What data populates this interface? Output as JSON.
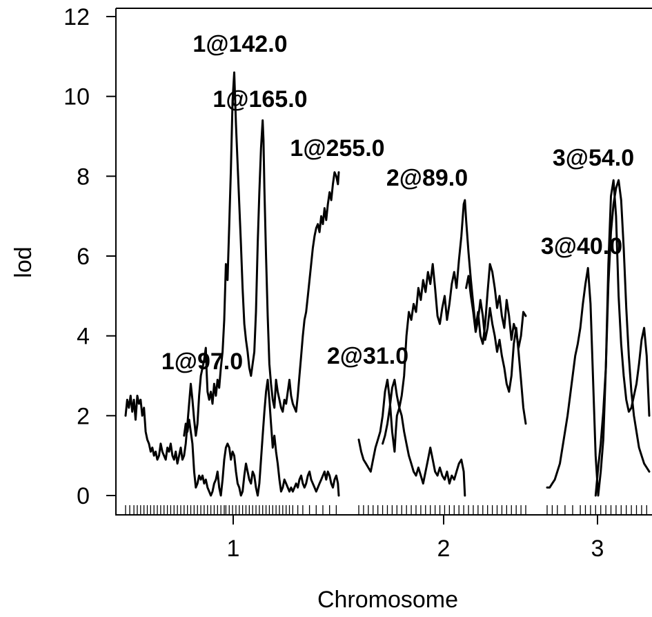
{
  "chart_data": {
    "type": "line",
    "xlabel": "Chromosome",
    "ylabel": "lod",
    "ylim": [
      0,
      12
    ],
    "y_ticks": [
      0,
      2,
      4,
      6,
      8,
      10,
      12
    ],
    "x_ticks": [
      {
        "label": "1",
        "chromosome": 1
      },
      {
        "label": "2",
        "chromosome": 2
      },
      {
        "label": "3",
        "chromosome": 3
      }
    ],
    "chromosomes": [
      {
        "name": "1",
        "start_cM": 0,
        "end_cM": 255
      },
      {
        "name": "2",
        "start_cM": 0,
        "end_cM": 140
      },
      {
        "name": "3",
        "start_cM": 0,
        "end_cM": 80
      }
    ],
    "series": [
      {
        "chromosome": "1",
        "x": [
          0,
          2,
          4,
          6,
          8,
          10,
          12,
          14,
          16,
          18,
          20,
          22,
          24,
          26,
          28,
          30,
          32,
          34,
          36,
          38,
          40,
          42,
          44,
          46,
          48,
          50,
          52,
          54,
          56,
          58,
          60,
          62,
          64,
          66,
          68,
          70,
          72,
          74,
          76,
          78,
          80,
          82,
          84,
          86,
          88,
          90,
          92,
          94,
          96,
          97,
          98,
          100,
          102,
          104,
          106,
          108,
          110,
          112,
          114,
          116,
          118,
          120,
          122,
          124,
          126,
          128,
          130,
          132,
          134,
          136,
          138,
          140,
          142,
          144,
          146,
          148,
          150,
          152,
          154,
          156,
          158,
          160,
          162,
          164,
          165,
          166,
          168,
          170,
          172,
          174,
          176,
          178,
          180,
          182,
          184,
          186,
          188,
          190,
          192,
          194,
          196,
          198,
          200,
          202,
          204,
          206,
          208,
          210,
          212,
          214,
          216,
          218,
          220,
          222,
          224,
          226,
          228,
          230,
          232,
          234,
          236,
          238,
          240,
          242,
          244,
          246,
          248,
          250,
          252,
          254,
          255
        ],
        "y": [
          2.0,
          2.4,
          2.2,
          2.5,
          2.1,
          2.4,
          1.9,
          2.5,
          2.3,
          2.4,
          2.0,
          2.2,
          1.6,
          1.4,
          1.3,
          1.1,
          1.2,
          1.0,
          1.1,
          0.9,
          1.0,
          1.3,
          1.1,
          1.0,
          0.9,
          1.2,
          1.1,
          1.3,
          1.0,
          0.9,
          1.1,
          0.8,
          1.0,
          1.2,
          0.9,
          1.0,
          1.3,
          1.8,
          2.3,
          2.8,
          2.4,
          1.9,
          1.5,
          1.8,
          2.5,
          3.0,
          3.2,
          3.4,
          3.7,
          3.1,
          2.6,
          2.4,
          2.6,
          2.3,
          2.8,
          2.5,
          2.9,
          2.7,
          3.2,
          3.6,
          4.4,
          5.8,
          5.4,
          6.8,
          8.2,
          9.9,
          10.6,
          9.3,
          8.3,
          7.3,
          6.3,
          5.2,
          4.3,
          3.9,
          3.6,
          3.2,
          3.0,
          3.3,
          3.6,
          4.6,
          6.3,
          7.6,
          8.7,
          9.4,
          8.9,
          7.7,
          6.0,
          4.5,
          3.3,
          2.8,
          2.4,
          2.2,
          2.9,
          2.6,
          2.4,
          2.2,
          2.1,
          2.4,
          2.3,
          2.6,
          2.9,
          2.5,
          2.3,
          2.2,
          2.1,
          2.5,
          3.0,
          3.5,
          4.0,
          4.4,
          4.6,
          5.0,
          5.4,
          5.8,
          6.2,
          6.5,
          6.7,
          6.8,
          6.6,
          7.0,
          6.8,
          7.2,
          6.9,
          7.3,
          7.6,
          7.4,
          7.8,
          8.1,
          8.0,
          7.8,
          8.1
        ]
      },
      {
        "chromosome": "1",
        "x": [
          70,
          72,
          74,
          76,
          78,
          80,
          82,
          84,
          86,
          88,
          90,
          92,
          94,
          96,
          98,
          100,
          102,
          104,
          106,
          108,
          110,
          112,
          114,
          116,
          118,
          120,
          122,
          124,
          126,
          128,
          130,
          132,
          134,
          136,
          138,
          140,
          142,
          144,
          146,
          148,
          150,
          152,
          154,
          156,
          158,
          160,
          162,
          164,
          166,
          168,
          170,
          172,
          174,
          176,
          178,
          180,
          182,
          184,
          186,
          188,
          190,
          192,
          194,
          196,
          198,
          200,
          202,
          204,
          206,
          208,
          210,
          212,
          214,
          216,
          218,
          220,
          222,
          224,
          226,
          228,
          230,
          232,
          234,
          236,
          238,
          240,
          242,
          244,
          246,
          248,
          250,
          252,
          254,
          255
        ],
        "y": [
          1.5,
          1.8,
          1.6,
          1.9,
          1.6,
          1.3,
          0.6,
          0.2,
          0.3,
          0.5,
          0.4,
          0.5,
          0.3,
          0.4,
          0.2,
          0.1,
          0.0,
          0.1,
          0.3,
          0.4,
          0.6,
          0.2,
          0.0,
          0.4,
          0.9,
          1.2,
          1.3,
          1.2,
          0.9,
          1.1,
          1.0,
          0.6,
          0.3,
          0.2,
          0.0,
          0.1,
          0.5,
          0.8,
          0.6,
          0.4,
          0.3,
          0.6,
          0.5,
          0.2,
          0.0,
          0.3,
          0.9,
          1.5,
          2.1,
          2.6,
          2.9,
          2.4,
          1.8,
          1.2,
          1.5,
          1.1,
          0.8,
          0.4,
          0.1,
          0.2,
          0.4,
          0.3,
          0.2,
          0.1,
          0.2,
          0.1,
          0.2,
          0.3,
          0.2,
          0.4,
          0.5,
          0.3,
          0.2,
          0.3,
          0.5,
          0.6,
          0.4,
          0.3,
          0.2,
          0.1,
          0.2,
          0.3,
          0.4,
          0.5,
          0.6,
          0.4,
          0.6,
          0.5,
          0.3,
          0.2,
          0.4,
          0.5,
          0.3,
          0.0
        ]
      },
      {
        "chromosome": "2",
        "x": [
          0,
          2,
          4,
          6,
          8,
          10,
          12,
          14,
          16,
          18,
          20,
          22,
          24,
          26,
          28,
          30,
          31,
          32,
          34,
          36,
          38,
          40,
          42,
          44,
          46,
          48,
          50,
          52,
          54,
          56,
          58,
          60,
          62,
          64,
          66,
          68,
          70,
          72,
          74,
          76,
          78,
          80,
          82,
          84,
          86,
          88,
          89,
          90,
          92,
          94,
          96,
          98,
          100,
          102,
          104,
          106,
          108,
          110,
          112,
          114,
          116,
          118,
          120,
          122,
          124,
          126,
          128,
          130,
          132,
          134,
          136,
          138,
          140
        ],
        "y": [
          1.4,
          1.1,
          0.9,
          0.8,
          0.7,
          0.6,
          0.9,
          1.2,
          1.4,
          1.6,
          2.0,
          2.6,
          2.9,
          2.4,
          1.6,
          1.1,
          1.6,
          2.0,
          2.2,
          2.5,
          3.0,
          4.0,
          4.6,
          4.4,
          4.8,
          4.6,
          5.2,
          4.9,
          5.4,
          5.1,
          5.6,
          5.3,
          5.8,
          5.2,
          4.5,
          4.3,
          4.7,
          5.0,
          4.4,
          4.8,
          5.3,
          5.6,
          5.2,
          5.9,
          6.5,
          7.3,
          7.4,
          6.9,
          6.1,
          5.4,
          4.8,
          4.2,
          4.6,
          4.0,
          3.8,
          4.3,
          5.1,
          5.8,
          5.6,
          5.2,
          4.7,
          5.0,
          4.5,
          4.2,
          4.9,
          4.5,
          3.9,
          4.3,
          4.1,
          3.7,
          4.0,
          4.6,
          4.5
        ]
      },
      {
        "chromosome": "2",
        "x": [
          20,
          22,
          24,
          26,
          28,
          30,
          32,
          34,
          36,
          38,
          40,
          42,
          44,
          46,
          48,
          50,
          52,
          54,
          56,
          58,
          60,
          62,
          64,
          66,
          68,
          70,
          72,
          74,
          76,
          78,
          80,
          82,
          84,
          86,
          88,
          89
        ],
        "y": [
          1.3,
          1.5,
          1.8,
          2.2,
          2.7,
          2.9,
          2.5,
          2.2,
          2.0,
          1.6,
          1.3,
          1.0,
          0.8,
          0.6,
          0.5,
          0.7,
          0.5,
          0.3,
          0.6,
          0.9,
          1.2,
          0.9,
          0.6,
          0.5,
          0.7,
          0.5,
          0.4,
          0.6,
          0.3,
          0.5,
          0.4,
          0.6,
          0.8,
          0.9,
          0.6,
          0.0
        ]
      },
      {
        "chromosome": "2",
        "x": [
          90,
          92,
          94,
          96,
          98,
          100,
          102,
          104,
          106,
          108,
          110,
          112,
          114,
          116,
          118,
          120,
          122,
          124,
          126,
          128,
          130,
          132,
          134,
          136,
          138,
          140
        ],
        "y": [
          5.2,
          5.5,
          5.0,
          4.6,
          4.1,
          4.4,
          4.9,
          4.5,
          3.9,
          4.2,
          4.7,
          4.3,
          4.0,
          3.6,
          3.9,
          3.5,
          3.2,
          2.8,
          2.6,
          3.0,
          3.8,
          4.2,
          3.6,
          2.9,
          2.2,
          1.8
        ]
      },
      {
        "chromosome": "3",
        "x": [
          0,
          2,
          4,
          6,
          8,
          10,
          12,
          14,
          16,
          18,
          20,
          22,
          24,
          26,
          28,
          30,
          32,
          34,
          36,
          38,
          40,
          42,
          44,
          46,
          48,
          50,
          52,
          54,
          56,
          58,
          60,
          62,
          64,
          66,
          68,
          70,
          72,
          74,
          76,
          78,
          80
        ],
        "y": [
          0.2,
          0.2,
          0.3,
          0.4,
          0.6,
          0.8,
          1.2,
          1.6,
          2.0,
          2.5,
          3.0,
          3.5,
          3.8,
          4.2,
          4.8,
          5.3,
          5.7,
          4.8,
          2.9,
          1.0,
          0.0,
          0.6,
          1.4,
          3.2,
          5.3,
          6.6,
          7.3,
          7.7,
          7.9,
          7.4,
          6.2,
          4.7,
          3.5,
          2.6,
          2.0,
          1.6,
          1.2,
          1.0,
          0.8,
          0.7,
          0.6
        ]
      },
      {
        "chromosome": "3",
        "x": [
          38,
          40,
          42,
          44,
          46,
          48,
          50,
          52,
          54,
          56,
          58,
          60,
          62,
          64,
          66,
          68,
          70,
          72,
          74,
          76,
          78,
          80
        ],
        "y": [
          0.0,
          0.7,
          1.3,
          2.1,
          3.2,
          5.8,
          7.5,
          7.9,
          7.0,
          5.0,
          3.8,
          3.0,
          2.4,
          2.1,
          2.2,
          2.5,
          2.8,
          3.3,
          3.9,
          4.2,
          3.5,
          2.0
        ]
      }
    ],
    "peak_labels": [
      {
        "text": "1@142.0",
        "lod": 11.5
      },
      {
        "text": "1@165.0",
        "lod": 10.0
      },
      {
        "text": "1@255.0",
        "lod": 8.7
      },
      {
        "text": "2@89.0",
        "lod": 8.0
      },
      {
        "text": "3@54.0",
        "lod": 8.4
      },
      {
        "text": "3@40.0",
        "lod": 6.3
      },
      {
        "text": "1@97.0",
        "lod": 3.4
      },
      {
        "text": "2@31.0",
        "lod": 3.4
      }
    ],
    "marker_positions": {
      "1": [
        0,
        5,
        10,
        14,
        18,
        22,
        26,
        30,
        34,
        38,
        42,
        46,
        50,
        54,
        58,
        62,
        66,
        70,
        74,
        78,
        82,
        86,
        90,
        94,
        98,
        102,
        106,
        110,
        114,
        118,
        120,
        124,
        128,
        132,
        136,
        140,
        144,
        148,
        152,
        156,
        160,
        164,
        168,
        172,
        176,
        180,
        184,
        188,
        192,
        196,
        200,
        206,
        212,
        220,
        228,
        236,
        244,
        252
      ],
      "2": [
        0,
        4,
        8,
        12,
        16,
        20,
        24,
        28,
        32,
        36,
        40,
        44,
        48,
        52,
        56,
        60,
        64,
        68,
        72,
        76,
        80,
        84,
        88,
        92,
        96,
        100,
        104,
        108,
        112,
        116,
        120,
        124,
        128,
        132,
        136,
        140
      ],
      "3": [
        0,
        4,
        8,
        14,
        20,
        26,
        30,
        34,
        38,
        42,
        46,
        50,
        54,
        58,
        62,
        66,
        70,
        74,
        78
      ]
    }
  }
}
